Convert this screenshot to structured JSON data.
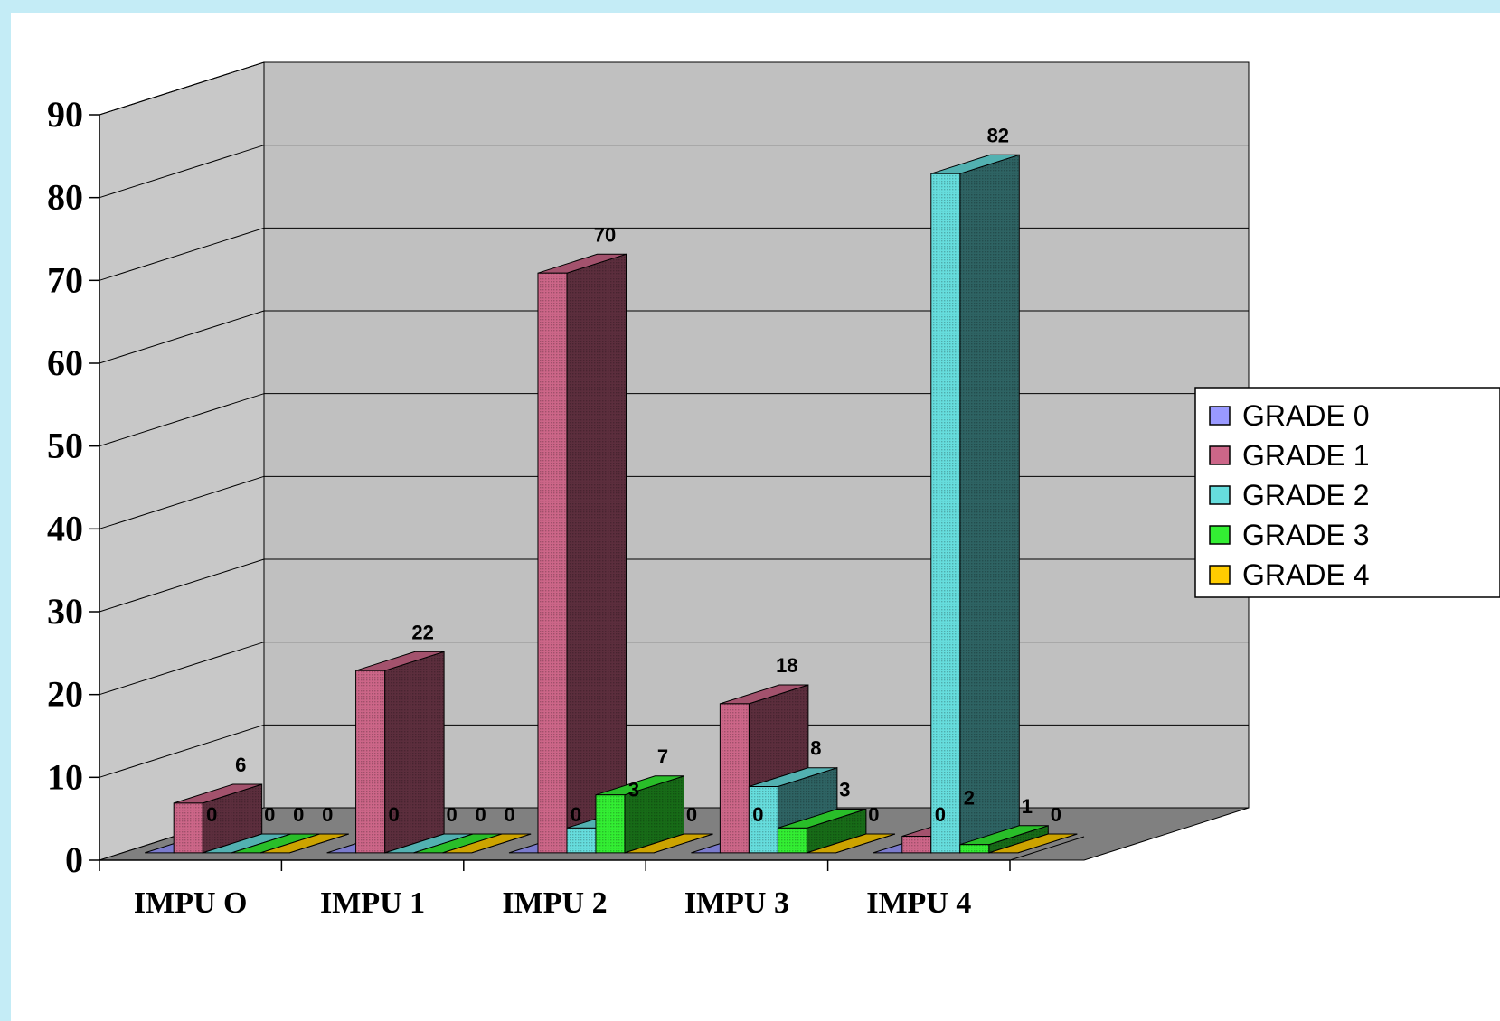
{
  "chart_data": {
    "type": "bar",
    "title": "",
    "xlabel": "",
    "ylabel": "",
    "categories": [
      "IMPU O",
      "IMPU 1",
      "IMPU 2",
      "IMPU 3",
      "IMPU 4"
    ],
    "series": [
      {
        "name": "GRADE 0",
        "values": [
          0,
          0,
          0,
          0,
          0
        ],
        "color": "#9999ff"
      },
      {
        "name": "GRADE 1",
        "values": [
          6,
          22,
          70,
          18,
          2
        ],
        "color": "#cc6688"
      },
      {
        "name": "GRADE 2",
        "values": [
          0,
          0,
          3,
          8,
          82
        ],
        "color": "#66dddd"
      },
      {
        "name": "GRADE 3",
        "values": [
          0,
          0,
          7,
          3,
          1
        ],
        "color": "#33ee33"
      },
      {
        "name": "GRADE 4",
        "values": [
          0,
          0,
          0,
          0,
          0
        ],
        "color": "#ffcc00"
      }
    ],
    "ylim": [
      0,
      90
    ],
    "yticks": [
      "0",
      "10",
      "20",
      "30",
      "40",
      "50",
      "60",
      "70",
      "80",
      "90"
    ],
    "grid": true,
    "legend_position": "right",
    "style": "3d-clustered-column"
  },
  "colors": {
    "page_background": "#c4ecf6",
    "back_wall": "#c0c0c0",
    "side_wall": "#c8c8c8",
    "floor": "#808080"
  }
}
